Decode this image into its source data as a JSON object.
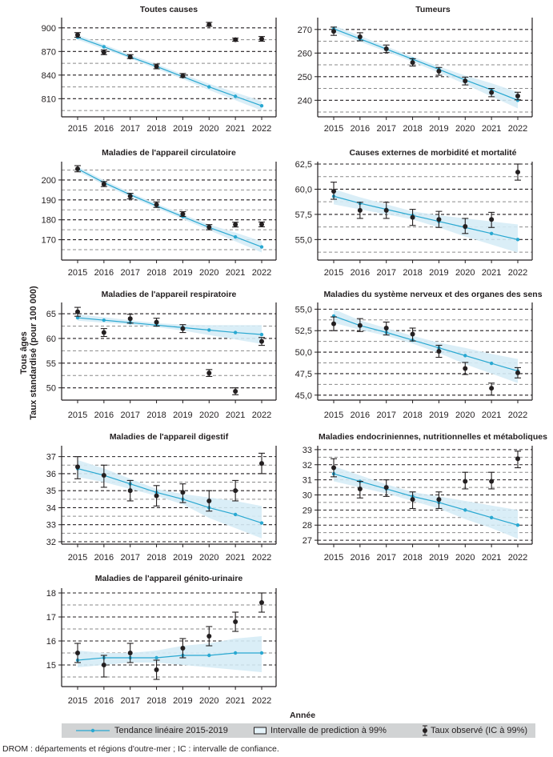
{
  "chart_data": {
    "type": "line",
    "layout": "small-multiples",
    "xlabel": "Année",
    "ylabel": [
      "Tous âges",
      "Taux standardisé (pour 100 000)"
    ],
    "x": [
      2015,
      2016,
      2017,
      2018,
      2019,
      2020,
      2021,
      2022
    ],
    "legend": {
      "placement": "bottom",
      "entries": [
        {
          "key": "trend",
          "label": "Tendance linéaire 2015-2019"
        },
        {
          "key": "pi",
          "label": "Intervalle de prediction à 99%"
        },
        {
          "key": "observed",
          "label": "Taux observé (IC à 99%)"
        }
      ]
    },
    "colors": {
      "trend": "#29a8d1",
      "band": "#d6ecf6",
      "observed": "#231f20",
      "major_grid": "#231f20",
      "minor_grid": "#8a8a8a",
      "legend_bg": "#d1d3d4"
    },
    "panels": [
      {
        "title": "Toutes causes",
        "ylim": [
          790,
          910
        ],
        "yticks": [
          810,
          840,
          870,
          900
        ],
        "minor": [
          795,
          825,
          855,
          885
        ],
        "tick_labels": [
          "810",
          "840",
          "870",
          "900"
        ],
        "trend": [
          888,
          876,
          863,
          851,
          838,
          825,
          813,
          801
        ],
        "band_lo": [
          885,
          873,
          861,
          848,
          835,
          821,
          808,
          795
        ],
        "band_hi": [
          891,
          879,
          866,
          854,
          841,
          829,
          818,
          807
        ],
        "observed": [
          891,
          869,
          863,
          851,
          839,
          904,
          885,
          886
        ],
        "ci_lo": [
          888,
          866,
          861,
          848,
          837,
          902,
          883,
          883
        ],
        "ci_hi": [
          894,
          872,
          866,
          854,
          842,
          907,
          887,
          889
        ]
      },
      {
        "title": "Tumeurs",
        "ylim": [
          234,
          274
        ],
        "yticks": [
          240,
          250,
          260,
          270
        ],
        "minor": [
          235,
          245,
          255,
          265
        ],
        "tick_labels": [
          "240",
          "250",
          "260",
          "270"
        ],
        "trend": [
          270.3,
          266.0,
          261.7,
          257.4,
          253.1,
          248.6,
          244.4,
          240.0
        ],
        "band_lo": [
          268.8,
          264.8,
          260.6,
          256.3,
          251.7,
          246.8,
          241.6,
          236.6
        ],
        "band_hi": [
          271.7,
          267.3,
          262.8,
          258.5,
          254.3,
          250.5,
          247.2,
          243.5
        ],
        "observed": [
          269.2,
          266.9,
          261.8,
          256.0,
          252.3,
          248.2,
          243.3,
          241.8
        ],
        "ci_lo": [
          267.5,
          265.2,
          260.2,
          254.5,
          250.6,
          246.5,
          241.5,
          240.2
        ],
        "ci_hi": [
          271.0,
          268.6,
          263.4,
          257.6,
          253.9,
          249.8,
          245.0,
          243.4
        ]
      },
      {
        "title": "Maladies de l'appareil circulatoire",
        "ylim": [
          161,
          208
        ],
        "yticks": [
          170,
          180,
          190,
          200
        ],
        "minor": [
          165,
          175,
          185,
          195,
          205
        ],
        "tick_labels": [
          "170",
          "180",
          "190",
          "200"
        ],
        "trend": [
          205.6,
          198.7,
          192.6,
          187.0,
          181.6,
          176.2,
          171.4,
          166.4
        ],
        "band_lo": [
          204.4,
          197.5,
          191.5,
          185.9,
          180.4,
          174.8,
          169.2,
          163.6
        ],
        "band_hi": [
          206.8,
          199.9,
          193.7,
          188.1,
          182.8,
          177.6,
          173.6,
          169.2
        ],
        "observed": [
          205.6,
          197.9,
          191.9,
          187.6,
          182.9,
          176.3,
          177.6,
          177.7
        ],
        "ci_lo": [
          204.1,
          196.7,
          190.5,
          186.2,
          181.7,
          175.0,
          176.4,
          176.5
        ],
        "ci_hi": [
          207.2,
          199.2,
          193.3,
          189.0,
          184.1,
          177.6,
          178.8,
          178.9
        ]
      },
      {
        "title": "Causes externes de morbidité et mortalité",
        "ylim": [
          53.2,
          62.5
        ],
        "yticks": [
          55.0,
          57.5,
          60.0,
          62.5
        ],
        "minor": [
          53.75,
          56.25,
          58.75,
          61.25
        ],
        "tick_labels": [
          "55,0",
          "57,5",
          "60,0",
          "62,5"
        ],
        "trend": [
          59.3,
          58.6,
          58.0,
          57.4,
          56.8,
          56.2,
          55.6,
          55.0
        ],
        "band_lo": [
          58.5,
          58.0,
          57.5,
          57.0,
          56.2,
          55.3,
          54.5,
          53.7
        ],
        "band_hi": [
          60.0,
          59.2,
          58.5,
          57.8,
          57.4,
          57.1,
          56.8,
          56.5
        ],
        "observed": [
          59.8,
          57.9,
          57.9,
          57.2,
          57.0,
          56.3,
          57.0,
          61.7
        ],
        "ci_lo": [
          59.0,
          57.1,
          57.1,
          56.4,
          56.2,
          55.6,
          56.2,
          60.9
        ],
        "ci_hi": [
          60.7,
          58.7,
          58.7,
          58.0,
          57.8,
          57.1,
          57.7,
          62.5
        ]
      },
      {
        "title": "Maladies de l'appareil respiratoire",
        "ylim": [
          48,
          66.8
        ],
        "yticks": [
          50,
          55,
          60,
          65
        ],
        "minor": [
          52.5,
          57.5,
          62.5
        ],
        "tick_labels": [
          "50",
          "55",
          "60",
          "65"
        ],
        "trend": [
          64.2,
          63.7,
          63.2,
          62.7,
          62.2,
          61.7,
          61.2,
          60.8
        ],
        "band_lo": [
          63.6,
          63.2,
          62.8,
          62.3,
          61.6,
          60.7,
          59.8,
          58.9
        ],
        "band_hi": [
          64.9,
          64.3,
          63.7,
          63.1,
          62.8,
          62.7,
          62.7,
          62.7
        ],
        "observed": [
          65.4,
          61.2,
          64.0,
          63.3,
          62.0,
          53.0,
          49.3,
          59.4
        ],
        "ci_lo": [
          64.5,
          60.4,
          63.1,
          62.5,
          61.2,
          52.3,
          48.6,
          58.6
        ],
        "ci_hi": [
          66.3,
          62.0,
          64.9,
          64.1,
          62.8,
          53.7,
          50.0,
          60.2
        ]
      },
      {
        "title": "Maladies du système nerveux et des organes des sens",
        "ylim": [
          44.7,
          55.5
        ],
        "yticks": [
          45.0,
          47.5,
          50.0,
          52.5,
          55.0
        ],
        "minor": [
          46.25,
          48.75,
          51.25,
          53.75
        ],
        "tick_labels": [
          "45,0",
          "47,5",
          "50,0",
          "52,5",
          "55,0"
        ],
        "trend": [
          54.2,
          53.1,
          52.3,
          51.4,
          50.5,
          49.6,
          48.7,
          47.8
        ],
        "band_lo": [
          53.4,
          52.6,
          51.9,
          51.0,
          49.9,
          48.6,
          47.5,
          46.4
        ],
        "band_hi": [
          55.0,
          53.7,
          52.8,
          51.9,
          51.1,
          50.5,
          49.8,
          49.2
        ],
        "observed": [
          53.3,
          53.1,
          52.8,
          52.1,
          50.1,
          48.1,
          45.8,
          47.6
        ],
        "ci_lo": [
          52.5,
          52.4,
          52.0,
          51.3,
          49.4,
          47.4,
          45.0,
          47.0
        ],
        "ci_hi": [
          54.1,
          53.9,
          53.5,
          52.8,
          50.8,
          48.8,
          46.4,
          48.2
        ]
      },
      {
        "title": "Maladies de l'appareil digestif",
        "ylim": [
          32,
          37.5
        ],
        "yticks": [
          32,
          33,
          34,
          35,
          36,
          37
        ],
        "minor": [
          32.5,
          33.5,
          34.5,
          35.5,
          36.5
        ],
        "tick_labels": [
          "32",
          "33",
          "34",
          "35",
          "36",
          "37"
        ],
        "trend": [
          36.3,
          35.9,
          35.4,
          34.9,
          34.5,
          34.0,
          33.6,
          33.1
        ],
        "band_lo": [
          35.8,
          35.5,
          35.1,
          34.7,
          34.2,
          33.4,
          32.8,
          32.2
        ],
        "band_hi": [
          36.8,
          36.3,
          35.7,
          35.1,
          34.8,
          34.6,
          34.4,
          34.1
        ],
        "observed": [
          36.4,
          35.9,
          35.0,
          34.7,
          34.9,
          34.4,
          35.0,
          36.6
        ],
        "ci_lo": [
          35.7,
          35.2,
          34.4,
          34.1,
          34.3,
          33.8,
          34.4,
          36.0
        ],
        "ci_hi": [
          37.0,
          36.5,
          35.6,
          35.3,
          35.4,
          35.0,
          35.6,
          37.2
        ]
      },
      {
        "title": "Maladies endocriniennes, nutritionnelles et métaboliques",
        "ylim": [
          26.9,
          33.1
        ],
        "yticks": [
          27,
          28,
          29,
          30,
          31,
          32,
          33
        ],
        "minor": [
          27.5,
          28.5,
          29.5,
          30.5,
          31.5,
          32.5
        ],
        "tick_labels": [
          "27",
          "28",
          "29",
          "30",
          "31",
          "32",
          "33"
        ],
        "trend": [
          31.4,
          30.9,
          30.4,
          29.9,
          29.5,
          29.0,
          28.5,
          28.0
        ],
        "band_lo": [
          30.9,
          30.5,
          30.1,
          29.6,
          29.1,
          28.4,
          27.8,
          27.1
        ],
        "band_hi": [
          31.9,
          31.3,
          30.7,
          30.2,
          29.9,
          29.6,
          29.3,
          29.0
        ],
        "observed": [
          31.8,
          30.4,
          30.5,
          29.7,
          29.7,
          30.9,
          30.9,
          32.4
        ],
        "ci_lo": [
          31.2,
          29.8,
          29.9,
          29.1,
          29.1,
          30.4,
          30.4,
          31.8
        ],
        "ci_hi": [
          32.4,
          30.9,
          31.0,
          30.2,
          30.2,
          31.5,
          31.5,
          32.9
        ]
      },
      {
        "title": "Maladies de l'appareil génito-urinaire",
        "ylim": [
          14.2,
          18.1
        ],
        "yticks": [
          15,
          16,
          17,
          18
        ],
        "minor": [
          14.5,
          15.5,
          16.5,
          17.5
        ],
        "tick_labels": [
          "15",
          "16",
          "17",
          "18"
        ],
        "trend": [
          15.2,
          15.3,
          15.3,
          15.3,
          15.4,
          15.4,
          15.5,
          15.5
        ],
        "band_lo": [
          14.9,
          15.0,
          15.1,
          15.1,
          15.0,
          14.9,
          14.8,
          14.7
        ],
        "band_hi": [
          15.6,
          15.5,
          15.5,
          15.6,
          15.8,
          15.9,
          16.1,
          16.2
        ],
        "observed": [
          15.5,
          15.0,
          15.5,
          14.8,
          15.7,
          16.2,
          16.8,
          17.6
        ],
        "ci_lo": [
          15.1,
          14.5,
          15.1,
          14.4,
          15.3,
          15.8,
          16.4,
          17.2
        ],
        "ci_hi": [
          15.9,
          15.4,
          15.9,
          15.2,
          16.1,
          16.6,
          17.2,
          18.0
        ]
      }
    ]
  },
  "footnote": "DROM : départements et régions d'outre-mer ; IC : intervalle de confiance."
}
